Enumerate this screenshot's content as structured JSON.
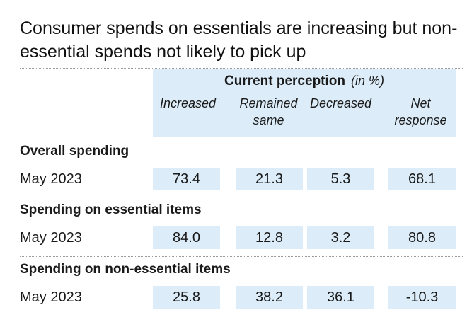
{
  "chart_data": {
    "type": "table",
    "title": "Consumer spends on essentials are increasing but non-essential spends not likely to pick up",
    "header_group": "Current perception",
    "unit": "(in %)",
    "columns": [
      "Increased",
      "Remained\nsame",
      "Decreased",
      "Net\nresponse"
    ],
    "sections": [
      {
        "name": "Overall spending",
        "rows": [
          {
            "label": "May 2023",
            "values": [
              "73.4",
              "21.3",
              "5.3",
              "68.1"
            ]
          }
        ]
      },
      {
        "name": "Spending on essential items",
        "rows": [
          {
            "label": "May 2023",
            "values": [
              "84.0",
              "12.8",
              "3.2",
              "80.8"
            ]
          }
        ]
      },
      {
        "name": "Spending on non-essential items",
        "rows": [
          {
            "label": "May 2023",
            "values": [
              "25.8",
              "38.2",
              "36.1",
              "-10.3"
            ]
          }
        ]
      }
    ],
    "colors": {
      "cell_background": "#dcedf9",
      "text": "#1a1a1a"
    }
  }
}
